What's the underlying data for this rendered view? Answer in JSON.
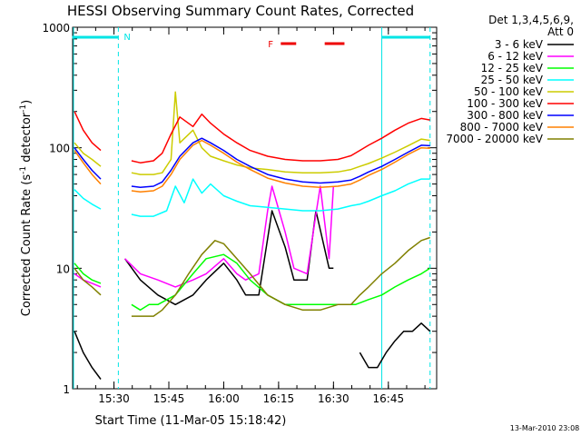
{
  "chart_data": {
    "type": "line",
    "title": "HESSI Observing Summary Count Rates, Corrected",
    "xlabel": "Start Time (11-Mar-05 15:18:42)",
    "ylabel_main": "Corrected Count Rate (s",
    "ylabel_sup1": "-1",
    "ylabel_mid": " detector",
    "ylabel_sup2": "-1",
    "ylabel_end": ")",
    "footer": "13-Mar-2010 23:08",
    "y_scale": "log",
    "xlim_minutes": [
      15.5,
      15.5,
      15.3,
      16.02
    ],
    "x_range": [
      "15:18:42",
      "16:55:00"
    ],
    "ylim": [
      1,
      1000
    ],
    "x_ticks": [
      {
        "t": 15.5,
        "label": "15:30"
      },
      {
        "t": 15.75,
        "label": "15:45"
      },
      {
        "t": 16.0,
        "label": "16:00"
      },
      {
        "t": 16.25,
        "label": "16:15"
      },
      {
        "t": 16.5,
        "label": "16:30"
      },
      {
        "t": 16.75,
        "label": "16:45"
      }
    ],
    "y_ticks": [
      {
        "v": 1,
        "label": "1"
      },
      {
        "v": 10,
        "label": "10"
      },
      {
        "v": 100,
        "label": "100"
      },
      {
        "v": 1000,
        "label": "1000"
      }
    ],
    "legend_header": [
      "Det 1,3,4,5,6,9,",
      "Att 0"
    ],
    "series": [
      {
        "name": "3 - 6 keV",
        "color": "#000000",
        "x": [
          15.32,
          15.36,
          15.4,
          15.44,
          15.52,
          15.55,
          15.62,
          15.7,
          15.78,
          15.86,
          15.92,
          16.0,
          16.06,
          16.1,
          16.16,
          16.22,
          16.28,
          16.32,
          16.38,
          16.42,
          16.48,
          16.5,
          16.58,
          16.62,
          16.66,
          16.7,
          16.74,
          16.78,
          16.82,
          16.86,
          16.9,
          16.94
        ],
        "y": [
          3,
          2,
          1.5,
          1.2,
          null,
          12,
          8,
          6,
          5,
          6,
          8,
          11,
          8,
          6,
          6,
          30,
          15,
          8,
          8,
          30,
          10,
          10,
          null,
          2,
          1.5,
          1.5,
          2,
          2.5,
          3,
          3,
          3.5,
          3
        ]
      },
      {
        "name": "6 - 12 keV",
        "color": "#ff00ff",
        "x": [
          15.32,
          15.36,
          15.4,
          15.44,
          15.52,
          15.55,
          15.62,
          15.7,
          15.78,
          15.86,
          15.92,
          16.0,
          16.06,
          16.1,
          16.16,
          16.2,
          16.22,
          16.28,
          16.32,
          16.38,
          16.42,
          16.44,
          16.48,
          16.5,
          16.58
        ],
        "y": [
          9,
          8,
          7.5,
          7,
          null,
          12,
          9,
          8,
          7,
          8,
          9,
          12,
          9,
          8,
          9,
          30,
          48,
          20,
          10,
          9,
          28,
          48,
          12,
          48,
          null
        ]
      },
      {
        "name": "12 - 25 keV",
        "color": "#00ff00",
        "x": [
          15.32,
          15.36,
          15.4,
          15.44,
          15.52,
          15.58,
          15.62,
          15.66,
          15.7,
          15.78,
          15.86,
          15.92,
          16.0,
          16.06,
          16.12,
          16.2,
          16.28,
          16.36,
          16.44,
          16.52,
          16.6,
          16.66,
          16.72,
          16.78,
          16.84,
          16.9,
          16.94
        ],
        "y": [
          11,
          9,
          8,
          7.5,
          null,
          5,
          4.5,
          5,
          5,
          6,
          9,
          12,
          13,
          11,
          8,
          6,
          5,
          5,
          5,
          5,
          5,
          5.5,
          6,
          7,
          8,
          9,
          10
        ]
      },
      {
        "name": "25 - 50 keV",
        "color": "#00ffff",
        "x": [
          15.32,
          15.36,
          15.4,
          15.44,
          15.52,
          15.58,
          15.62,
          15.68,
          15.74,
          15.78,
          15.82,
          15.86,
          15.9,
          15.94,
          16.0,
          16.06,
          16.12,
          16.2,
          16.28,
          16.36,
          16.44,
          16.52,
          16.58,
          16.62,
          16.66,
          16.72,
          16.78,
          16.84,
          16.9,
          16.94
        ],
        "y": [
          45,
          38,
          34,
          31,
          null,
          28,
          27,
          27,
          30,
          48,
          35,
          55,
          42,
          50,
          40,
          36,
          33,
          32,
          31,
          30,
          30,
          31,
          33,
          34,
          36,
          40,
          44,
          50,
          55,
          55
        ]
      },
      {
        "name": "50 - 100 keV",
        "color": "#cccc00",
        "x": [
          15.32,
          15.36,
          15.4,
          15.44,
          15.52,
          15.58,
          15.62,
          15.68,
          15.72,
          15.76,
          15.78,
          15.8,
          15.86,
          15.9,
          15.94,
          16.0,
          16.06,
          16.12,
          16.2,
          16.28,
          16.36,
          16.44,
          16.52,
          16.58,
          16.62,
          16.66,
          16.72,
          16.78,
          16.84,
          16.9,
          16.94
        ],
        "y": [
          110,
          90,
          80,
          70,
          null,
          62,
          60,
          60,
          62,
          80,
          290,
          110,
          140,
          100,
          85,
          78,
          72,
          68,
          66,
          63,
          62,
          62,
          63,
          66,
          70,
          74,
          82,
          92,
          104,
          118,
          115
        ]
      },
      {
        "name": "100 - 300 keV",
        "color": "#ff0000",
        "x": [
          15.32,
          15.36,
          15.4,
          15.44,
          15.52,
          15.58,
          15.62,
          15.68,
          15.72,
          15.76,
          15.8,
          15.86,
          15.9,
          15.94,
          16.0,
          16.06,
          16.12,
          16.2,
          16.28,
          16.36,
          16.44,
          16.52,
          16.58,
          16.62,
          16.66,
          16.72,
          16.78,
          16.84,
          16.9,
          16.94
        ],
        "y": [
          200,
          140,
          110,
          95,
          null,
          78,
          75,
          78,
          90,
          130,
          180,
          150,
          190,
          160,
          130,
          110,
          95,
          85,
          80,
          78,
          78,
          80,
          86,
          95,
          105,
          120,
          140,
          160,
          175,
          170
        ]
      },
      {
        "name": "300 - 800 keV",
        "color": "#0000ff",
        "x": [
          15.32,
          15.36,
          15.4,
          15.44,
          15.52,
          15.58,
          15.62,
          15.68,
          15.72,
          15.76,
          15.8,
          15.86,
          15.9,
          15.94,
          16.0,
          16.06,
          16.12,
          16.2,
          16.28,
          16.36,
          16.44,
          16.52,
          16.58,
          16.62,
          16.66,
          16.72,
          16.78,
          16.84,
          16.9,
          16.94
        ],
        "y": [
          100,
          80,
          65,
          55,
          null,
          48,
          47,
          48,
          52,
          65,
          85,
          110,
          120,
          110,
          95,
          80,
          70,
          60,
          55,
          52,
          51,
          52,
          54,
          58,
          63,
          70,
          80,
          92,
          105,
          104
        ]
      },
      {
        "name": "800 - 7000 keV",
        "color": "#ff8000",
        "x": [
          15.32,
          15.36,
          15.4,
          15.44,
          15.52,
          15.58,
          15.62,
          15.68,
          15.72,
          15.76,
          15.8,
          15.86,
          15.9,
          15.94,
          16.0,
          16.06,
          16.12,
          16.2,
          16.28,
          16.36,
          16.44,
          16.52,
          16.58,
          16.62,
          16.66,
          16.72,
          16.78,
          16.84,
          16.9,
          16.94
        ],
        "y": [
          95,
          75,
          60,
          50,
          null,
          44,
          43,
          44,
          48,
          60,
          80,
          105,
          115,
          105,
          90,
          76,
          66,
          56,
          51,
          48,
          47,
          48,
          50,
          54,
          59,
          66,
          76,
          88,
          100,
          99
        ]
      },
      {
        "name": "7000 - 20000 keV",
        "color": "#808000",
        "x": [
          15.32,
          15.36,
          15.4,
          15.44,
          15.52,
          15.58,
          15.62,
          15.68,
          15.72,
          15.78,
          15.84,
          15.9,
          15.96,
          16.0,
          16.06,
          16.12,
          16.2,
          16.28,
          16.36,
          16.44,
          16.52,
          16.58,
          16.62,
          16.66,
          16.72,
          16.78,
          16.84,
          16.9,
          16.94
        ],
        "y": [
          10,
          8,
          7,
          6,
          null,
          4,
          4,
          4,
          4.5,
          6,
          9,
          13,
          17,
          16,
          12,
          9,
          6,
          5,
          4.5,
          4.5,
          5,
          5,
          6,
          7,
          9,
          11,
          14,
          17,
          18
        ]
      }
    ],
    "flags": {
      "N": {
        "label": "N",
        "segments": [
          [
            15.31,
            15.52
          ],
          [
            16.72,
            16.94
          ]
        ]
      },
      "F": {
        "label": "F",
        "segments": [
          [
            16.26,
            16.33
          ],
          [
            16.46,
            16.55
          ]
        ]
      }
    },
    "saa_lines": [
      15.52,
      16.72,
      16.94
    ]
  }
}
